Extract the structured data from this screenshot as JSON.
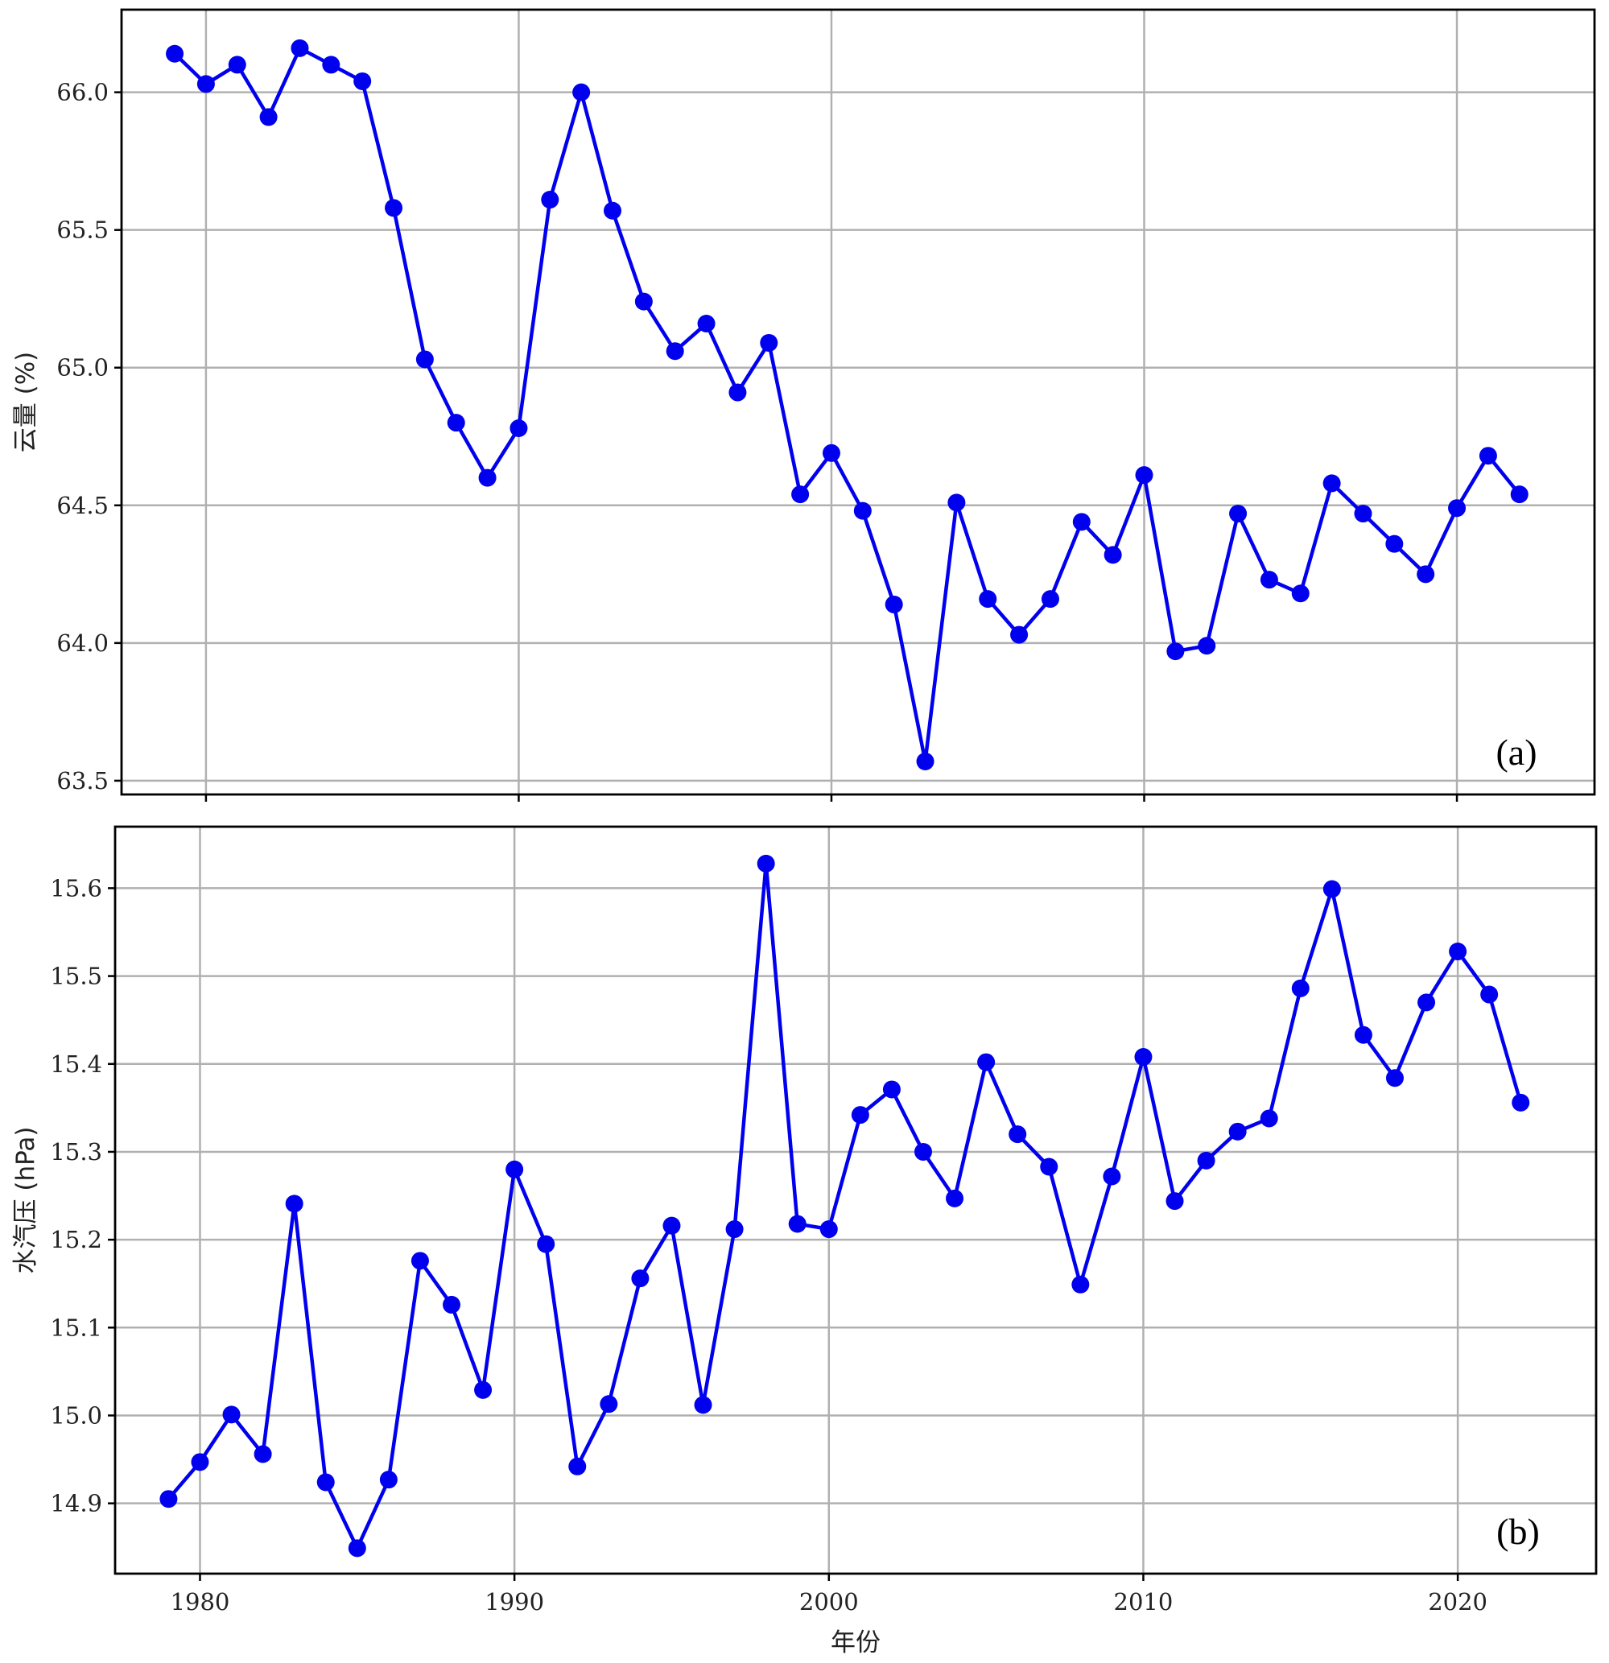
{
  "chart_data": [
    {
      "type": "line",
      "panel_label": "(a)",
      "xlabel": "",
      "ylabel": "云量 (%)",
      "ylim": [
        63.45,
        66.3
      ],
      "yticks": [
        63.5,
        64.0,
        64.5,
        65.0,
        65.5,
        66.0
      ],
      "ytick_labels": [
        "63.5",
        "64.0",
        "64.5",
        "65.0",
        "65.5",
        "66.0"
      ],
      "xlim": [
        1977.3,
        2024.4
      ],
      "xticks": [
        1980,
        1990,
        2000,
        2010,
        2020
      ],
      "xtick_labels": [],
      "grid": true,
      "color": "#0000ee",
      "series": [
        {
          "x": [
            1979,
            1980,
            1981,
            1982,
            1983,
            1984,
            1985,
            1986,
            1987,
            1988,
            1989,
            1990,
            1991,
            1992,
            1993,
            1994,
            1995,
            1996,
            1997,
            1998,
            1999,
            2000,
            2001,
            2002,
            2003,
            2004,
            2005,
            2006,
            2007,
            2008,
            2009,
            2010,
            2011,
            2012,
            2013,
            2014,
            2015,
            2016,
            2017,
            2018,
            2019,
            2020,
            2021,
            2022
          ],
          "values": [
            66.14,
            66.03,
            66.1,
            65.91,
            66.16,
            66.1,
            66.04,
            65.58,
            65.03,
            64.8,
            64.6,
            64.78,
            65.61,
            66.0,
            65.57,
            65.24,
            65.06,
            65.16,
            64.91,
            65.09,
            64.54,
            64.69,
            64.48,
            64.14,
            63.57,
            64.51,
            64.16,
            64.03,
            64.16,
            64.44,
            64.32,
            64.61,
            63.97,
            63.99,
            64.47,
            64.23,
            64.18,
            64.58,
            64.47,
            64.36,
            64.25,
            64.49,
            64.68,
            64.54
          ]
        }
      ]
    },
    {
      "type": "line",
      "panel_label": "(b)",
      "xlabel": "年份",
      "ylabel": "水汽压 (hPa)",
      "ylim": [
        14.82,
        15.67
      ],
      "yticks": [
        14.9,
        15.0,
        15.1,
        15.2,
        15.3,
        15.4,
        15.5,
        15.6
      ],
      "ytick_labels": [
        "14.9",
        "15.0",
        "15.1",
        "15.2",
        "15.3",
        "15.4",
        "15.5",
        "15.6"
      ],
      "xlim": [
        1977.3,
        2024.4
      ],
      "xticks": [
        1980,
        1990,
        2000,
        2010,
        2020
      ],
      "xtick_labels": [
        "1980",
        "1990",
        "2000",
        "2010",
        "2020"
      ],
      "grid": true,
      "color": "#0000ee",
      "series": [
        {
          "x": [
            1979,
            1980,
            1981,
            1982,
            1983,
            1984,
            1985,
            1986,
            1987,
            1988,
            1989,
            1990,
            1991,
            1992,
            1993,
            1994,
            1995,
            1996,
            1997,
            1998,
            1999,
            2000,
            2001,
            2002,
            2003,
            2004,
            2005,
            2006,
            2007,
            2008,
            2009,
            2010,
            2011,
            2012,
            2013,
            2014,
            2015,
            2016,
            2017,
            2018,
            2019,
            2020,
            2021,
            2022
          ],
          "values": [
            14.905,
            14.947,
            15.001,
            14.956,
            15.241,
            14.924,
            14.849,
            14.927,
            15.176,
            15.126,
            15.029,
            15.28,
            15.195,
            14.942,
            15.013,
            15.156,
            15.216,
            15.012,
            15.212,
            15.628,
            15.218,
            15.212,
            15.342,
            15.371,
            15.3,
            15.247,
            15.402,
            15.32,
            15.283,
            15.149,
            15.272,
            15.408,
            15.244,
            15.29,
            15.323,
            15.338,
            15.486,
            15.599,
            15.433,
            15.384,
            15.47,
            15.528,
            15.479,
            15.356
          ]
        }
      ]
    }
  ]
}
